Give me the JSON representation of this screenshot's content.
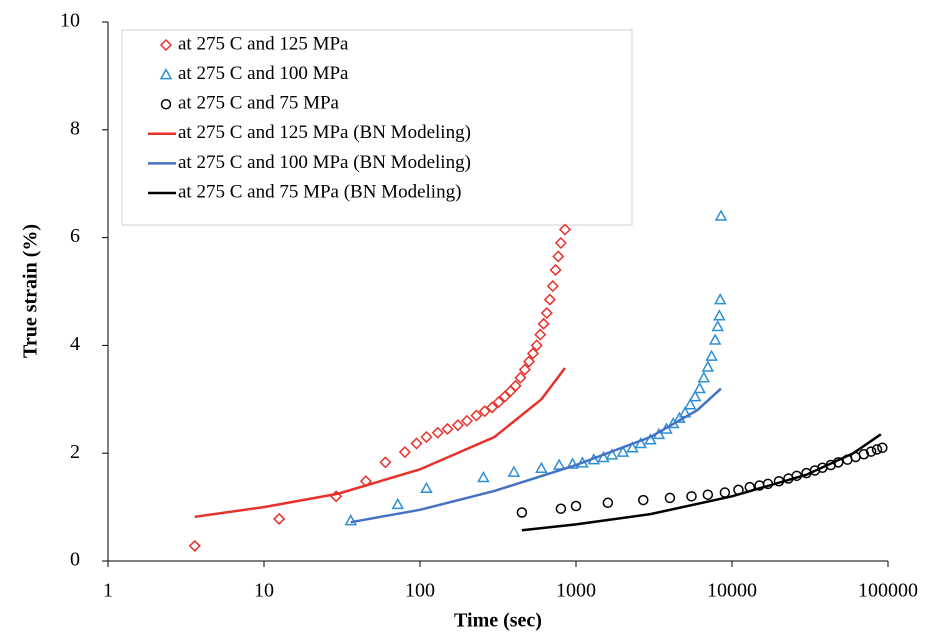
{
  "chart_data": {
    "type": "scatter-line",
    "xlabel": "Time (sec)",
    "ylabel": "True strain (%)",
    "xscale": "log",
    "xlim": [
      1,
      100000
    ],
    "xticks": [
      1,
      10,
      100,
      1000,
      10000,
      100000
    ],
    "ylim": [
      0,
      10
    ],
    "yticks": [
      0,
      2,
      4,
      6,
      8,
      10
    ],
    "legend": "upper left",
    "series": [
      {
        "name": "at 275 C and 125 MPa",
        "color": "#e8312a",
        "marker": "diamond",
        "x": [
          3.6,
          12.5,
          29,
          45,
          60,
          80,
          95,
          110,
          130,
          150,
          175,
          200,
          230,
          260,
          290,
          320,
          350,
          380,
          410,
          440,
          470,
          500,
          530,
          560,
          590,
          620,
          650,
          680,
          710,
          740,
          770,
          800,
          850
        ],
        "values": [
          0.28,
          0.78,
          1.2,
          1.48,
          1.83,
          2.02,
          2.18,
          2.3,
          2.38,
          2.45,
          2.52,
          2.6,
          2.7,
          2.78,
          2.85,
          2.95,
          3.05,
          3.15,
          3.25,
          3.4,
          3.55,
          3.7,
          3.85,
          4.0,
          4.2,
          4.4,
          4.6,
          4.85,
          5.1,
          5.4,
          5.65,
          5.9,
          6.15
        ]
      },
      {
        "name": "at 275 C and 100 MPa",
        "color": "#2e8fd4",
        "marker": "triangle",
        "x": [
          36,
          72,
          110,
          255,
          400,
          600,
          780,
          950,
          1100,
          1300,
          1500,
          1700,
          2000,
          2300,
          2600,
          3000,
          3400,
          3800,
          4200,
          4600,
          5000,
          5400,
          5800,
          6200,
          6600,
          7000,
          7400,
          7800,
          8100,
          8300,
          8400,
          8500
        ],
        "values": [
          0.75,
          1.05,
          1.35,
          1.55,
          1.65,
          1.72,
          1.78,
          1.8,
          1.82,
          1.88,
          1.92,
          1.97,
          2.02,
          2.1,
          2.18,
          2.25,
          2.35,
          2.45,
          2.55,
          2.65,
          2.75,
          2.9,
          3.05,
          3.2,
          3.4,
          3.6,
          3.8,
          4.1,
          4.35,
          4.55,
          4.85,
          6.4
        ]
      },
      {
        "name": "at 275 C and 75 MPa",
        "color": "#000000",
        "marker": "circle",
        "x": [
          450,
          800,
          1000,
          1600,
          2700,
          4000,
          5500,
          7000,
          9000,
          11000,
          13000,
          15000,
          17000,
          20000,
          23000,
          26000,
          30000,
          34000,
          38000,
          43000,
          48000,
          55000,
          62000,
          70000,
          78000,
          85000,
          92000
        ],
        "values": [
          0.9,
          0.97,
          1.02,
          1.08,
          1.13,
          1.17,
          1.2,
          1.23,
          1.27,
          1.32,
          1.37,
          1.4,
          1.43,
          1.48,
          1.53,
          1.58,
          1.63,
          1.68,
          1.73,
          1.78,
          1.83,
          1.88,
          1.93,
          1.98,
          2.03,
          2.07,
          2.1
        ]
      },
      {
        "name": "at 275 C and 125 MPa (BN Modeling)",
        "color": "#e8312a",
        "marker": "line",
        "x": [
          3.6,
          10,
          30,
          100,
          300,
          600,
          850
        ],
        "values": [
          0.82,
          1.0,
          1.25,
          1.7,
          2.3,
          3.0,
          3.58
        ]
      },
      {
        "name": "at 275 C and 100 MPa (BN Modeling)",
        "color": "#4472c4",
        "marker": "line",
        "x": [
          36,
          100,
          300,
          1000,
          3000,
          6000,
          8500
        ],
        "values": [
          0.72,
          0.95,
          1.3,
          1.78,
          2.3,
          2.8,
          3.2
        ]
      },
      {
        "name": "at 275 C and 75 MPa (BN Modeling)",
        "color": "#000000",
        "marker": "line",
        "x": [
          450,
          1000,
          3000,
          10000,
          30000,
          60000,
          90000
        ],
        "values": [
          0.57,
          0.68,
          0.87,
          1.2,
          1.6,
          2.0,
          2.35
        ]
      }
    ]
  }
}
